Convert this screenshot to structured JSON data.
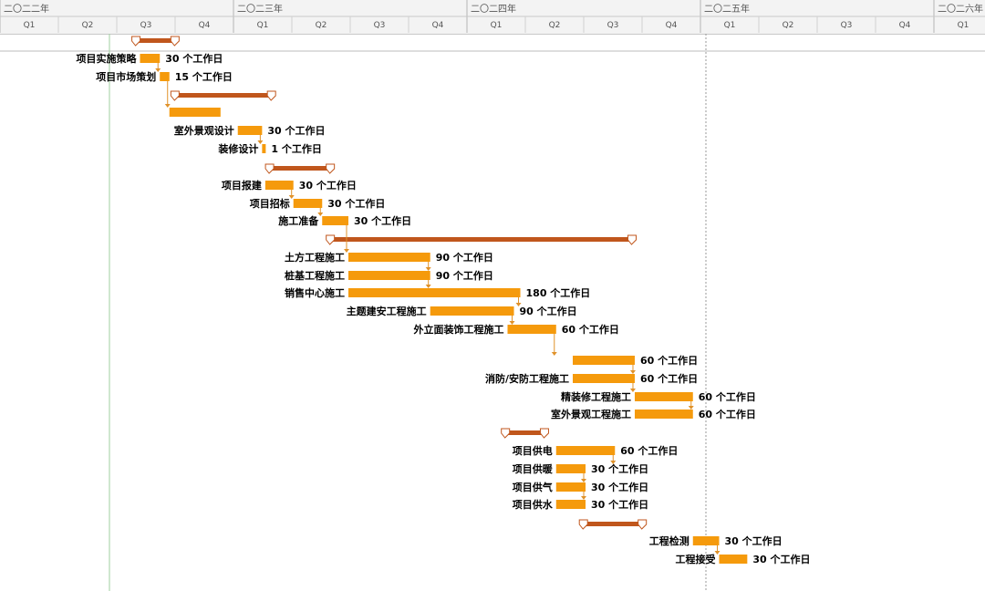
{
  "timescale": {
    "years": [
      "二〇二二年",
      "二〇二三年",
      "二〇二四年",
      "二〇二五年",
      "二〇二六年"
    ],
    "quarters": [
      "Q1",
      "Q2",
      "Q3",
      "Q4",
      "Q1",
      "Q2",
      "Q3",
      "Q4",
      "Q1",
      "Q2",
      "Q3",
      "Q4",
      "Q1",
      "Q2",
      "Q3",
      "Q4",
      "Q1"
    ]
  },
  "colors": {
    "task_bar": "#f59a0c",
    "summary_bar": "#c0561c",
    "link": "#e0922a",
    "today_line": "#9fcf9f"
  },
  "duration_unit": "个工作日",
  "summaries": [
    {
      "start": "2022-08-01",
      "end": "2022-10-01"
    },
    {
      "start": "2022-10-01",
      "end": "2023-03-01"
    },
    {
      "start": "2023-02-26",
      "end": "2023-06-01"
    },
    {
      "start": "2023-06-01",
      "end": "2024-09-15"
    },
    {
      "start": "2024-03-01",
      "end": "2024-05-01"
    },
    {
      "start": "2024-07-01",
      "end": "2024-10-01"
    }
  ],
  "tasks": [
    {
      "name": "项目实施策略",
      "duration": "30",
      "start": "2022-08-08",
      "end": "2022-09-08"
    },
    {
      "name": "项目市场策划",
      "duration": "15",
      "start": "2022-09-08",
      "end": "2022-09-23"
    },
    {
      "name": "",
      "duration": "",
      "start": "2022-09-23",
      "end": "2022-12-12"
    },
    {
      "name": "室外景观设计",
      "duration": "30",
      "start": "2023-01-08",
      "end": "2023-02-15"
    },
    {
      "name": "装修设计",
      "duration": "1",
      "start": "2023-02-15",
      "end": "2023-02-16"
    },
    {
      "name": "项目报建",
      "duration": "30",
      "start": "2023-02-20",
      "end": "2023-04-05"
    },
    {
      "name": "项目招标",
      "duration": "30",
      "start": "2023-04-05",
      "end": "2023-05-20"
    },
    {
      "name": "施工准备",
      "duration": "30",
      "start": "2023-05-20",
      "end": "2023-06-30"
    },
    {
      "name": "土方工程施工",
      "duration": "90",
      "start": "2023-06-30",
      "end": "2023-11-05"
    },
    {
      "name": "桩基工程施工",
      "duration": "90",
      "start": "2023-06-30",
      "end": "2023-11-05"
    },
    {
      "name": "销售中心施工",
      "duration": "180",
      "start": "2023-06-30",
      "end": "2024-03-25"
    },
    {
      "name": "主题建安工程施工",
      "duration": "90",
      "start": "2023-11-05",
      "end": "2024-03-15"
    },
    {
      "name": "外立面装饰工程施工",
      "duration": "60",
      "start": "2024-03-05",
      "end": "2024-05-20"
    },
    {
      "name": "",
      "duration": "60",
      "start": "2024-06-15",
      "end": "2024-09-20"
    },
    {
      "name": "消防/安防工程施工",
      "duration": "60",
      "start": "2024-06-15",
      "end": "2024-09-20"
    },
    {
      "name": "精装修工程施工",
      "duration": "60",
      "start": "2024-09-20",
      "end": "2024-12-20"
    },
    {
      "name": "室外景观工程施工",
      "duration": "60",
      "start": "2024-09-20",
      "end": "2024-12-20"
    },
    {
      "name": "项目供电",
      "duration": "60",
      "start": "2024-05-20",
      "end": "2024-08-20"
    },
    {
      "name": "项目供暖",
      "duration": "30",
      "start": "2024-05-20",
      "end": "2024-07-05"
    },
    {
      "name": "项目供气",
      "duration": "30",
      "start": "2024-05-20",
      "end": "2024-07-05"
    },
    {
      "name": "项目供水",
      "duration": "30",
      "start": "2024-05-20",
      "end": "2024-07-05"
    },
    {
      "name": "工程检测",
      "duration": "30",
      "start": "2024-12-20",
      "end": "2025-01-30"
    },
    {
      "name": "工程接受",
      "duration": "30",
      "start": "2025-01-30",
      "end": "2025-03-15"
    }
  ]
}
